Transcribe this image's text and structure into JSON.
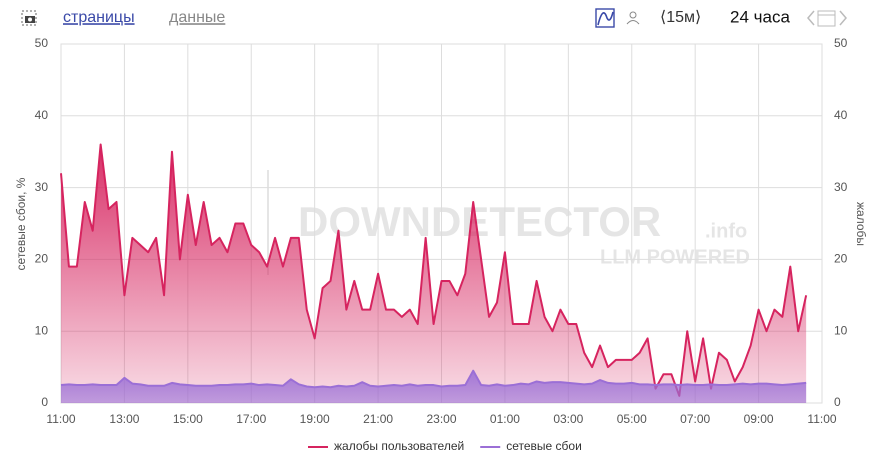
{
  "chart_data": {
    "type": "area",
    "nav": {
      "pages": "страницы",
      "data": "данные",
      "interval": "⟨15м⟩",
      "period": "24 часа"
    },
    "watermark": {
      "brand": "DOWNDETECTOR",
      "suffix": ".info",
      "tagline": "LLM POWERED"
    },
    "y_label": "сетевые сбои, %",
    "y2_label": "жалобы",
    "categories": [
      "11:00",
      null,
      null,
      null,
      null,
      null,
      null,
      null,
      "13:00",
      null,
      null,
      null,
      null,
      null,
      null,
      null,
      "15:00",
      null,
      null,
      null,
      null,
      null,
      null,
      null,
      "17:00",
      null,
      null,
      null,
      null,
      null,
      null,
      null,
      "19:00",
      null,
      null,
      null,
      null,
      null,
      null,
      null,
      "21:00",
      null,
      null,
      null,
      null,
      null,
      null,
      null,
      "23:00",
      null,
      null,
      null,
      null,
      null,
      null,
      null,
      "01:00",
      null,
      null,
      null,
      null,
      null,
      null,
      null,
      "03:00",
      null,
      null,
      null,
      null,
      null,
      null,
      null,
      "05:00",
      null,
      null,
      null,
      null,
      null,
      null,
      null,
      "07:00",
      null,
      null,
      null,
      null,
      null,
      null,
      null,
      "09:00",
      null,
      null,
      null,
      null,
      null,
      null,
      null,
      "11:00"
    ],
    "series": [
      {
        "name": "жалобы пользователей",
        "color": "#d6245f",
        "axis": "y2",
        "values": [
          32,
          19,
          19,
          28,
          24,
          36,
          27,
          28,
          15,
          23,
          22,
          21,
          23,
          15,
          35,
          20,
          29,
          22,
          28,
          22,
          23,
          21,
          25,
          25,
          22,
          21,
          19,
          23,
          19,
          23,
          23,
          13,
          9,
          16,
          17,
          24,
          13,
          17,
          13,
          13,
          18,
          13,
          13,
          12,
          13,
          11,
          23,
          11,
          17,
          17,
          15,
          18,
          28,
          20,
          12,
          14,
          21,
          11,
          11,
          11,
          17,
          12,
          10,
          13,
          11,
          11,
          7,
          5,
          8,
          5,
          6,
          6,
          6,
          7,
          9,
          2,
          4,
          4,
          1,
          10,
          3,
          9,
          2,
          7,
          6,
          3,
          5,
          8,
          13,
          10,
          13,
          12,
          19,
          10,
          15,
          null,
          null
        ]
      },
      {
        "name": "сетевые сбои",
        "color": "#9b6fd6",
        "values": [
          2.5,
          2.6,
          2.5,
          2.5,
          2.6,
          2.5,
          2.5,
          2.5,
          3.5,
          2.7,
          2.6,
          2.4,
          2.4,
          2.4,
          2.8,
          2.6,
          2.5,
          2.4,
          2.4,
          2.4,
          2.5,
          2.5,
          2.6,
          2.6,
          2.7,
          2.5,
          2.6,
          2.5,
          2.4,
          3.3,
          2.6,
          2.3,
          2.2,
          2.3,
          2.2,
          2.4,
          2.3,
          2.4,
          2.9,
          2.4,
          2.3,
          2.4,
          2.5,
          2.4,
          2.6,
          2.4,
          2.5,
          2.5,
          2.3,
          2.4,
          2.4,
          2.5,
          4.5,
          2.5,
          2.4,
          2.6,
          2.4,
          2.5,
          2.7,
          2.6,
          3.0,
          2.8,
          2.9,
          2.9,
          2.8,
          2.7,
          2.6,
          2.7,
          3.2,
          2.8,
          2.7,
          2.7,
          2.8,
          2.6,
          2.6,
          2.5,
          2.6,
          2.6,
          2.5,
          2.6,
          2.5,
          2.5,
          2.6,
          2.5,
          2.5,
          2.6,
          2.7,
          2.6,
          2.7,
          2.7,
          2.6,
          2.5,
          2.6,
          2.7,
          2.8,
          null,
          null
        ]
      }
    ],
    "ylim": [
      0,
      50
    ],
    "yticks": [
      0,
      10,
      20,
      30,
      40,
      50
    ],
    "y2lim": [
      0,
      50
    ],
    "y2ticks": [
      0,
      10,
      20,
      30,
      40,
      50
    ],
    "grid": true,
    "legend": "bottom"
  }
}
